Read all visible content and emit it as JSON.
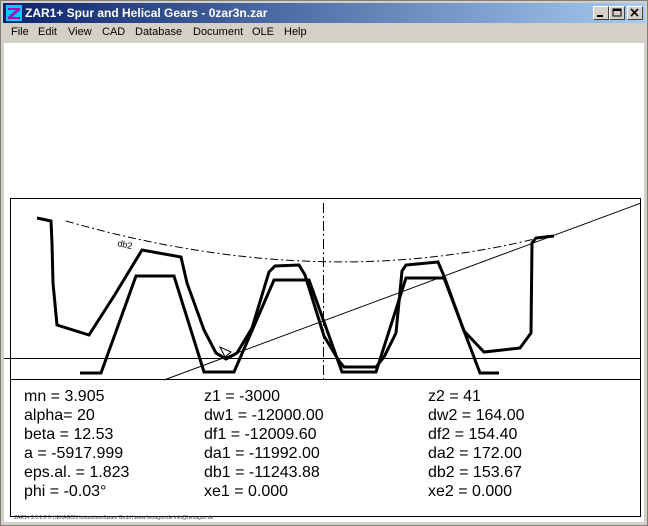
{
  "window": {
    "title": "ZAR1+  Spur and Helical Gears  -  0zar3n.zar"
  },
  "menu": [
    {
      "label": "File"
    },
    {
      "label": "Edit"
    },
    {
      "label": "View"
    },
    {
      "label": "CAD"
    },
    {
      "label": "Database"
    },
    {
      "label": "Document"
    },
    {
      "label": "OLE"
    },
    {
      "label": "Help"
    }
  ],
  "drawing": {
    "circle_label": "db2"
  },
  "params": {
    "col1": [
      "mn = 3.905",
      "alpha= 20",
      "beta = 12.53",
      "a = -5917.999",
      "eps.al. = 1.823",
      "phi = -0.03°"
    ],
    "col2": [
      "z1  = -3000",
      "dw1 = -12000.00",
      "df1 = -12009.60",
      "da1 = -11992.00",
      "db1 = -11243.88",
      "xe1 = 0.000"
    ],
    "col3": [
      "z2  = 41",
      "dw2 = 164.00",
      "df2 = 154.40",
      "da2 = 172.00",
      "db2 = 153.67",
      "xe2 = 0.000"
    ]
  },
  "footer": "ZAR1+ 2.0.1.0 © HEXAGON Industriesoftware GmbH  www.hexagon.de  info@hexagon.de"
}
